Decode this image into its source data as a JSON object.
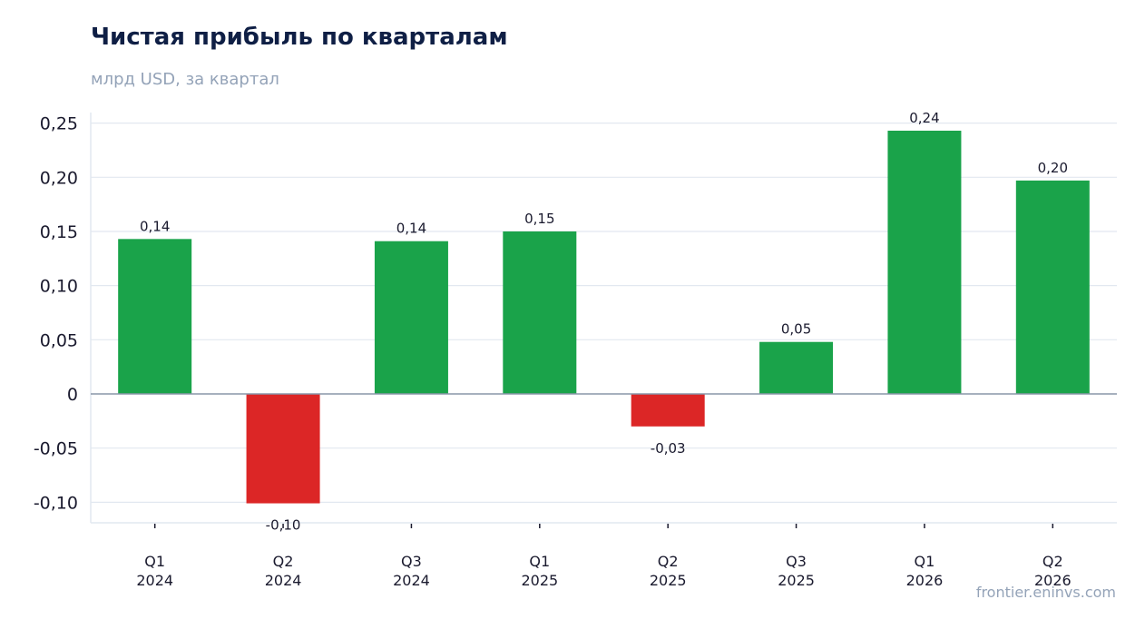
{
  "title": "Чистая прибыль по кварталам",
  "subtitle": "млрд USD, за квартал",
  "source": "frontier.eninvs.com",
  "colors": {
    "positive": "#1aa34a",
    "negative": "#dc2626",
    "grid": "#e2e8f0",
    "zero_line": "#8a96a8",
    "axis": "#e2e8f0"
  },
  "chart_data": {
    "type": "bar",
    "categories": [
      [
        "Q1",
        "2024"
      ],
      [
        "Q2",
        "2024"
      ],
      [
        "Q3",
        "2024"
      ],
      [
        "Q1",
        "2025"
      ],
      [
        "Q2",
        "2025"
      ],
      [
        "Q3",
        "2025"
      ],
      [
        "Q1",
        "2026"
      ],
      [
        "Q2",
        "2026"
      ]
    ],
    "values": [
      0.143,
      -0.101,
      0.141,
      0.15,
      -0.03,
      0.048,
      0.243,
      0.197
    ],
    "data_labels": [
      "0,14",
      "-0,10",
      "0,14",
      "0,15",
      "-0,03",
      "0,05",
      "0,24",
      "0,20"
    ],
    "yticks": [
      -0.1,
      -0.05,
      0,
      0.05,
      0.1,
      0.15,
      0.2,
      0.25
    ],
    "ytick_labels": [
      "-0,10",
      "-0,05",
      "0",
      "0,05",
      "0,10",
      "0,15",
      "0,20",
      "0,25"
    ],
    "ylim": [
      -0.119,
      0.261
    ],
    "grid": true,
    "legend": "none"
  }
}
